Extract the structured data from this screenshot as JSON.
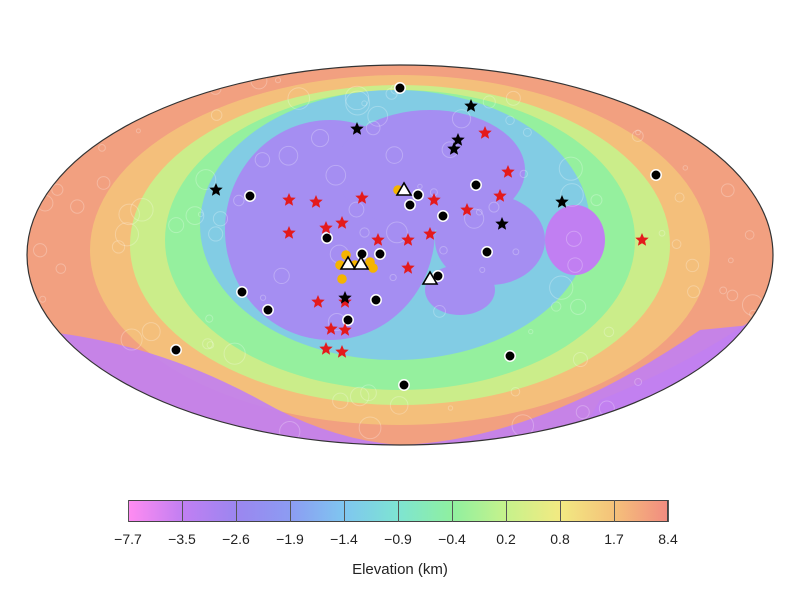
{
  "colorbar": {
    "title": "Elevation (km)",
    "ticks": [
      "−7.7",
      "−3.5",
      "−2.6",
      "−1.9",
      "−1.4",
      "−0.9",
      "−0.4",
      "0.2",
      "0.8",
      "1.7",
      "8.4"
    ],
    "colors": [
      "#ff8cf2",
      "#c17ff2",
      "#9b86f0",
      "#8c9cf2",
      "#7fc6f0",
      "#7ee4d2",
      "#8ff0a0",
      "#c6f28c",
      "#f2ea82",
      "#f4c27a",
      "#f28c80"
    ]
  },
  "map": {
    "projection": "Mollweide (global)",
    "colors": {
      "highlands": "#f2a080",
      "uplands": "#f4c27a",
      "plateau": "#c6f28c",
      "mid": "#8ff0a0",
      "low": "#7fc6f0",
      "basin": "#a58ef2",
      "deep": "#c17ff2",
      "outline": "#333333"
    },
    "marker_colors": {
      "black_circle": "#000000",
      "red_star": "#e41a1c",
      "black_star": "#000000",
      "orange_circle": "#f5b400",
      "white_triangle": "#ffffff"
    }
  }
}
